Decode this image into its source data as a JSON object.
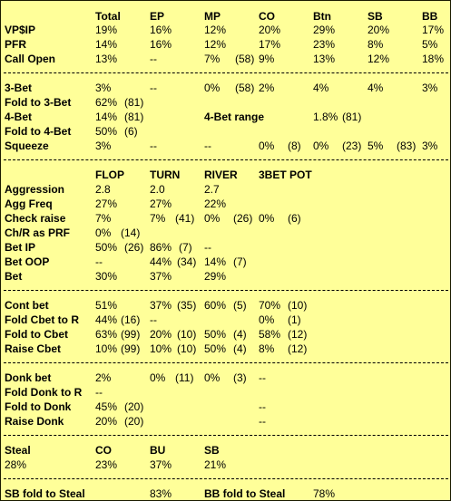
{
  "header": [
    "Total",
    "EP",
    "MP",
    "CO",
    "Btn",
    "SB",
    "BB"
  ],
  "sec1": [
    {
      "label": "VP$IP",
      "cells": [
        "19%",
        "16%",
        "12%",
        "20%",
        "29%",
        "20%",
        "17%"
      ]
    },
    {
      "label": "PFR",
      "cells": [
        "14%",
        "16%",
        "12%",
        "17%",
        "23%",
        "8%",
        "5%"
      ]
    },
    {
      "label": "Call Open",
      "cells": [
        "13%",
        "--",
        "7%",
        "(58)",
        "9%",
        "13%",
        "12%",
        "18%"
      ]
    }
  ],
  "sec2": {
    "threebet": {
      "label": "3-Bet",
      "cells": [
        "3%",
        "--",
        "0%",
        "(58)",
        "2%",
        "4%",
        "4%",
        "3%"
      ]
    },
    "fold3": {
      "label": "Fold to 3-Bet",
      "cells": [
        "62%",
        "(81)"
      ]
    },
    "fourbet": {
      "label": "4-Bet",
      "cells": [
        "14%",
        "(81)"
      ],
      "range_label": "4-Bet range",
      "range_cells": [
        "1.8%",
        "(81)"
      ]
    },
    "fold4": {
      "label": "Fold to 4-Bet",
      "cells": [
        "50%",
        "(6)"
      ]
    },
    "squeeze": {
      "label": "Squeeze",
      "cells": [
        "3%",
        "--",
        "--",
        "0%",
        "(8)",
        "0%",
        "(23)",
        "5%",
        "(83)",
        "3%"
      ]
    }
  },
  "sec3": {
    "header": [
      "FLOP",
      "TURN",
      "RIVER",
      "3BET POT"
    ],
    "rows": [
      {
        "label": "Aggression",
        "cells": [
          "2.8",
          "2.0",
          "2.7"
        ]
      },
      {
        "label": "Agg Freq",
        "cells": [
          "27%",
          "27%",
          "22%"
        ]
      },
      {
        "label": "Check raise",
        "cells": [
          "7%",
          "7%",
          "(41)",
          "0%",
          "(26)",
          "0%",
          "(6)"
        ]
      },
      {
        "label": "Ch/R as PRF",
        "cells": [
          "0%",
          "(14)"
        ]
      },
      {
        "label": "Bet IP",
        "cells": [
          "50%",
          "(26)",
          "86%",
          "(7)",
          "--"
        ]
      },
      {
        "label": "Bet OOP",
        "cells": [
          "--",
          "44%",
          "(34)",
          "14%",
          "(7)"
        ]
      },
      {
        "label": "Bet",
        "cells": [
          "30%",
          "37%",
          "29%"
        ]
      }
    ]
  },
  "sec4": [
    {
      "label": "Cont bet",
      "cells": [
        "51%",
        "37%",
        "(35)",
        "60%",
        "(5)",
        "70%",
        "(10)"
      ]
    },
    {
      "label": "Fold Cbet to R",
      "cells": [
        "44%",
        "(16)",
        "--",
        "0%",
        "(1)"
      ]
    },
    {
      "label": "Fold to Cbet",
      "cells": [
        "63%",
        "(99)",
        "20%",
        "(10)",
        "50%",
        "(4)",
        "58%",
        "(12)"
      ]
    },
    {
      "label": "Raise Cbet",
      "cells": [
        "10%",
        "(99)",
        "10%",
        "(10)",
        "50%",
        "(4)",
        "8%",
        "(12)"
      ]
    }
  ],
  "sec5": [
    {
      "label": "Donk bet",
      "cells": [
        "2%",
        "0%",
        "(11)",
        "0%",
        "(3)",
        "--"
      ]
    },
    {
      "label": "Fold Donk to R",
      "cells": [
        "--"
      ]
    },
    {
      "label": "Fold to Donk",
      "cells": [
        "45%",
        "(20)",
        "--"
      ]
    },
    {
      "label": "Raise Donk",
      "cells": [
        "20%",
        "(20)",
        "--"
      ]
    }
  ],
  "sec6": {
    "labels": [
      "Steal",
      "CO",
      "BU",
      "SB"
    ],
    "values": [
      "28%",
      "23%",
      "37%",
      "21%"
    ]
  },
  "sec7": {
    "sb_label": "SB fold to Steal",
    "sb_value": "83%",
    "bb_label": "BB fold to Steal",
    "bb_value": "78%"
  }
}
